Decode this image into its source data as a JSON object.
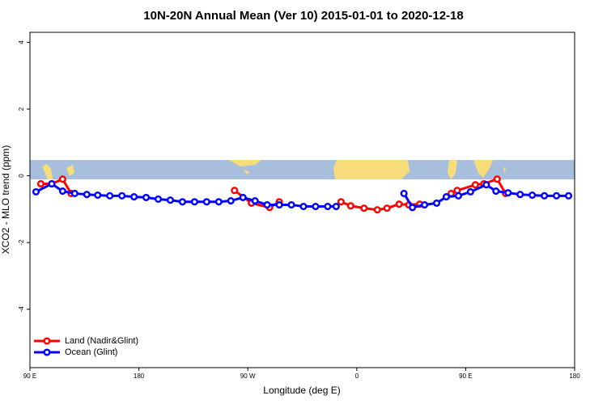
{
  "chart_data": {
    "type": "line",
    "title": "10N-20N Annual Mean (Ver 10)   2015-01-01 to 2020-12-18",
    "xlabel": "Longitude (deg E)",
    "ylabel": "XCO2 - MLO trend (ppm)",
    "xlim": [
      90,
      540
    ],
    "ylim": [
      -5.75,
      4.3
    ],
    "xticks": [
      {
        "value": 90,
        "label": "90 E"
      },
      180,
      {
        "value": 270,
        "label": "90 W"
      },
      {
        "value": 360,
        "label": "0"
      },
      {
        "value": 450,
        "label": "90 E"
      },
      {
        "value": 540,
        "label": "180"
      }
    ],
    "yticks": [
      -4,
      -2,
      0,
      2,
      4
    ],
    "legend": "bottom-left",
    "series": [
      {
        "name": "Land (Nadir&Glint)",
        "color": "#ff0000",
        "x": [
          99,
          108,
          117,
          124,
          200,
          259,
          273,
          288,
          296,
          320,
          347,
          355,
          366,
          377,
          385,
          395,
          403,
          412,
          430,
          438,
          443,
          458,
          465,
          476,
          483
        ],
        "values": [
          -0.24,
          -0.24,
          -0.1,
          -0.53,
          null,
          -0.44,
          -0.82,
          -0.95,
          -0.78,
          null,
          -0.78,
          -0.9,
          -0.97,
          -1.02,
          -0.97,
          -0.85,
          -0.87,
          -0.85,
          null,
          -0.53,
          -0.44,
          -0.27,
          -0.24,
          -0.1,
          -0.53
        ]
      },
      {
        "name": "Ocean (Glint)",
        "color": "#0000ff",
        "x": [
          95,
          108,
          117,
          127,
          137,
          146,
          156,
          166,
          176,
          186,
          196,
          206,
          216,
          226,
          236,
          246,
          256,
          266,
          276,
          286,
          296,
          306,
          316,
          326,
          336,
          343,
          370,
          399,
          406,
          416,
          426,
          434,
          444,
          454,
          467,
          475,
          485,
          495,
          505,
          515,
          525,
          535
        ],
        "values": [
          -0.48,
          -0.24,
          -0.46,
          -0.53,
          -0.56,
          -0.58,
          -0.6,
          -0.6,
          -0.63,
          -0.65,
          -0.7,
          -0.73,
          -0.78,
          -0.78,
          -0.78,
          -0.78,
          -0.75,
          -0.65,
          -0.75,
          -0.87,
          -0.87,
          -0.87,
          -0.92,
          -0.92,
          -0.92,
          -0.92,
          null,
          -0.53,
          -0.95,
          -0.87,
          -0.82,
          -0.63,
          -0.6,
          -0.48,
          -0.27,
          -0.46,
          -0.51,
          -0.56,
          -0.58,
          -0.6,
          -0.6,
          -0.6
        ]
      }
    ]
  }
}
